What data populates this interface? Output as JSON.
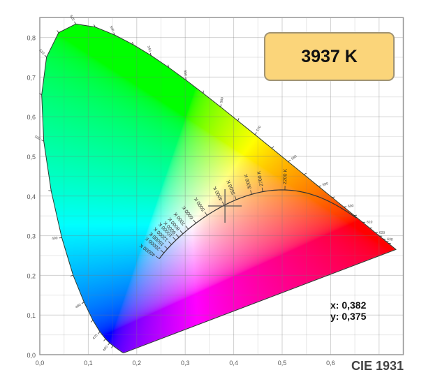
{
  "chart_data": {
    "type": "line",
    "title": "CIE 1931",
    "xlim": [
      0,
      0.75
    ],
    "ylim": [
      0,
      0.85
    ],
    "grid": true,
    "x_ticks": [
      "0,0",
      "0,1",
      "0,2",
      "0,3",
      "0,4",
      "0,5",
      "0,6"
    ],
    "y_ticks": [
      "0,0",
      "0,1",
      "0,2",
      "0,3",
      "0,4",
      "0,5",
      "0,6",
      "0,7",
      "0,8"
    ],
    "spectral_locus": {
      "wavelengths": [
        380,
        385,
        390,
        395,
        400,
        405,
        410,
        415,
        420,
        425,
        430,
        435,
        440,
        445,
        450,
        455,
        460,
        465,
        470,
        475,
        480,
        485,
        490,
        495,
        500,
        505,
        510,
        515,
        520,
        525,
        530,
        535,
        540,
        545,
        550,
        555,
        560,
        565,
        570,
        575,
        580,
        585,
        590,
        595,
        600,
        605,
        610,
        615,
        620,
        625,
        630,
        635,
        640,
        645,
        650,
        655,
        660,
        665,
        670,
        680,
        690,
        700
      ],
      "x": [
        0.1741,
        0.174,
        0.1738,
        0.1736,
        0.1733,
        0.173,
        0.1726,
        0.1721,
        0.1714,
        0.1703,
        0.1689,
        0.1669,
        0.1644,
        0.1611,
        0.1566,
        0.151,
        0.144,
        0.1355,
        0.1241,
        0.1096,
        0.0913,
        0.0687,
        0.0454,
        0.0235,
        0.0082,
        0.0039,
        0.0139,
        0.0389,
        0.0743,
        0.1142,
        0.1547,
        0.1929,
        0.2296,
        0.2658,
        0.3016,
        0.3373,
        0.3731,
        0.4087,
        0.4441,
        0.4788,
        0.5125,
        0.5448,
        0.5752,
        0.6029,
        0.627,
        0.6482,
        0.6658,
        0.6801,
        0.6915,
        0.7006,
        0.7079,
        0.714,
        0.719,
        0.723,
        0.726,
        0.7283,
        0.73,
        0.7311,
        0.732,
        0.7334,
        0.7344,
        0.7347
      ],
      "y": [
        0.005,
        0.005,
        0.0049,
        0.0049,
        0.0048,
        0.0048,
        0.0048,
        0.0048,
        0.0051,
        0.0058,
        0.0069,
        0.0086,
        0.0109,
        0.0138,
        0.0177,
        0.0227,
        0.0297,
        0.0399,
        0.0578,
        0.0868,
        0.1327,
        0.2007,
        0.295,
        0.4127,
        0.5384,
        0.6548,
        0.7502,
        0.812,
        0.8338,
        0.8262,
        0.8059,
        0.7816,
        0.7543,
        0.7243,
        0.6923,
        0.6589,
        0.6245,
        0.5896,
        0.5547,
        0.5202,
        0.4866,
        0.4544,
        0.4242,
        0.3965,
        0.3725,
        0.3514,
        0.334,
        0.3197,
        0.3083,
        0.2993,
        0.292,
        0.2859,
        0.2809,
        0.277,
        0.274,
        0.2717,
        0.27,
        0.2689,
        0.268,
        0.2666,
        0.2656,
        0.2653
      ],
      "labeled_wavelengths": [
        460,
        470,
        480,
        490,
        500,
        510,
        520,
        530,
        540,
        550,
        560,
        570,
        580,
        590,
        600,
        610,
        620,
        630
      ]
    },
    "planckian_locus": {
      "range_k": [
        1000,
        40000
      ],
      "labels": [
        {
          "t": 40000,
          "label": "40000 K"
        },
        {
          "t": 20000,
          "label": "20000 K"
        },
        {
          "t": 15000,
          "label": "15000 K"
        },
        {
          "t": 12000,
          "label": "12000 K"
        },
        {
          "t": 10000,
          "label": "10000 K"
        },
        {
          "t": 9000,
          "label": "9000 K"
        },
        {
          "t": 8000,
          "label": "8000 K"
        },
        {
          "t": 7000,
          "label": "7000 K"
        },
        {
          "t": 6000,
          "label": "6000 K"
        },
        {
          "t": 5000,
          "label": "5000 K"
        },
        {
          "t": 4000,
          "label": "4000 K"
        },
        {
          "t": 3500,
          "label": "3500 K"
        },
        {
          "t": 3000,
          "label": "3000 K"
        },
        {
          "t": 2700,
          "label": "2700 K"
        },
        {
          "t": 2200,
          "label": "2200 K"
        }
      ]
    },
    "selected_point": {
      "x": 0.382,
      "y": 0.375
    }
  },
  "badge": {
    "cct": "3937 K",
    "color": "#fbd57a"
  },
  "readout": {
    "x": "x: 0,382",
    "y": "y: 0,375"
  },
  "label": "CIE 1931"
}
